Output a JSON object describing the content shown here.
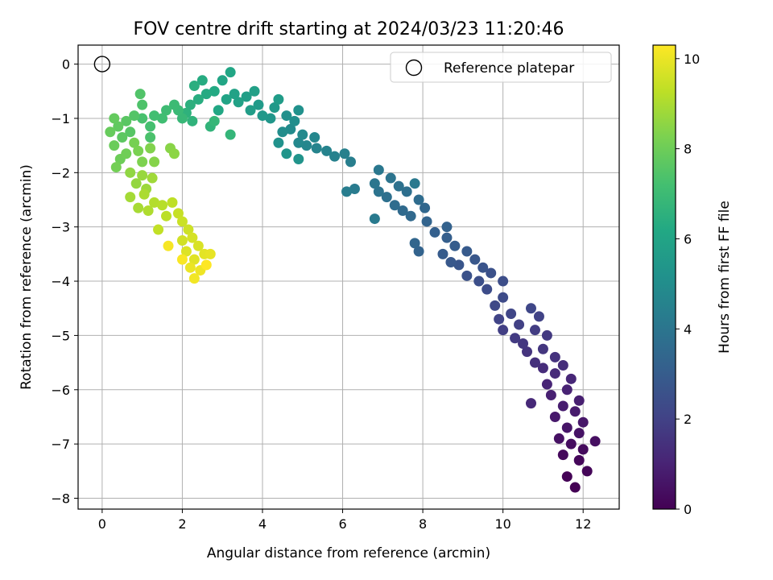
{
  "chart_data": {
    "type": "scatter",
    "title": "FOV centre drift starting at 2024/03/23 11:20:46",
    "xlabel": "Angular distance from reference (arcmin)",
    "ylabel": "Rotation from reference (arcmin)",
    "xlim": [
      -0.6,
      12.9
    ],
    "ylim": [
      -8.2,
      0.35
    ],
    "xticks": [
      0,
      2,
      4,
      6,
      8,
      10,
      12
    ],
    "yticks": [
      0,
      -1,
      -2,
      -3,
      -4,
      -5,
      -6,
      -7,
      -8
    ],
    "grid": true,
    "legend": {
      "placement": "top-right",
      "entries": [
        "Reference platepar"
      ]
    },
    "reference_point": {
      "x": 0,
      "y": 0,
      "label": "Reference platepar"
    },
    "colorbar": {
      "label": "Hours from first FF file",
      "range": [
        0,
        10.3
      ],
      "ticks": [
        0,
        2,
        4,
        6,
        8,
        10
      ],
      "colormap": "viridis"
    },
    "series": [
      {
        "points": [
          [
            11.8,
            -7.8
          ],
          [
            11.6,
            -7.6
          ],
          [
            12.1,
            -7.5
          ],
          [
            11.9,
            -7.3
          ],
          [
            11.5,
            -7.2
          ],
          [
            12.0,
            -7.1
          ],
          [
            11.7,
            -7.0
          ],
          [
            12.3,
            -6.95
          ],
          [
            11.4,
            -6.9
          ],
          [
            11.9,
            -6.8
          ],
          [
            11.6,
            -6.7
          ],
          [
            12.0,
            -6.6
          ],
          [
            11.3,
            -6.5
          ],
          [
            11.8,
            -6.4
          ],
          [
            11.5,
            -6.3
          ],
          [
            11.9,
            -6.2
          ],
          [
            11.2,
            -6.1
          ],
          [
            11.6,
            -6.0
          ],
          [
            11.1,
            -5.9
          ],
          [
            11.7,
            -5.8
          ],
          [
            10.7,
            -6.25
          ],
          [
            11.3,
            -5.7
          ],
          [
            11.0,
            -5.6
          ],
          [
            11.5,
            -5.55
          ],
          [
            10.8,
            -5.5
          ],
          [
            11.3,
            -5.4
          ],
          [
            10.6,
            -5.3
          ],
          [
            11.0,
            -5.25
          ],
          [
            10.5,
            -5.15
          ],
          [
            11.1,
            -5.0
          ],
          [
            10.3,
            -5.05
          ],
          [
            10.8,
            -4.9
          ],
          [
            10.0,
            -4.9
          ],
          [
            10.4,
            -4.8
          ],
          [
            10.9,
            -4.65
          ],
          [
            9.9,
            -4.7
          ],
          [
            10.2,
            -4.6
          ],
          [
            10.7,
            -4.5
          ],
          [
            9.8,
            -4.45
          ],
          [
            10.0,
            -4.3
          ],
          [
            9.6,
            -4.15
          ],
          [
            10.0,
            -4.0
          ],
          [
            9.4,
            -4.0
          ],
          [
            9.7,
            -3.85
          ],
          [
            9.1,
            -3.9
          ],
          [
            9.5,
            -3.75
          ],
          [
            8.9,
            -3.7
          ],
          [
            9.3,
            -3.6
          ],
          [
            8.7,
            -3.65
          ],
          [
            9.1,
            -3.45
          ],
          [
            8.5,
            -3.5
          ],
          [
            8.8,
            -3.35
          ],
          [
            8.6,
            -3.2
          ],
          [
            8.3,
            -3.1
          ],
          [
            8.6,
            -3.0
          ],
          [
            7.9,
            -3.45
          ],
          [
            8.1,
            -2.9
          ],
          [
            7.8,
            -3.3
          ],
          [
            8.05,
            -2.65
          ],
          [
            7.7,
            -2.8
          ],
          [
            7.5,
            -2.7
          ],
          [
            7.9,
            -2.5
          ],
          [
            7.3,
            -2.6
          ],
          [
            7.6,
            -2.35
          ],
          [
            7.1,
            -2.45
          ],
          [
            7.4,
            -2.25
          ],
          [
            6.9,
            -2.35
          ],
          [
            7.2,
            -2.1
          ],
          [
            6.8,
            -2.2
          ],
          [
            6.9,
            -1.95
          ],
          [
            7.8,
            -2.2
          ],
          [
            6.8,
            -2.85
          ],
          [
            6.3,
            -2.3
          ],
          [
            6.1,
            -2.35
          ],
          [
            6.2,
            -1.8
          ],
          [
            6.05,
            -1.65
          ],
          [
            5.8,
            -1.7
          ],
          [
            5.6,
            -1.6
          ],
          [
            5.35,
            -1.55
          ],
          [
            5.1,
            -1.5
          ],
          [
            5.3,
            -1.35
          ],
          [
            4.9,
            -1.45
          ],
          [
            5.0,
            -1.3
          ],
          [
            4.7,
            -1.2
          ],
          [
            4.5,
            -1.25
          ],
          [
            4.8,
            -1.05
          ],
          [
            4.6,
            -0.95
          ],
          [
            4.9,
            -0.85
          ],
          [
            4.4,
            -1.45
          ],
          [
            4.9,
            -1.75
          ],
          [
            4.6,
            -1.65
          ],
          [
            4.2,
            -1.0
          ],
          [
            4.0,
            -0.95
          ],
          [
            4.3,
            -0.8
          ],
          [
            3.9,
            -0.75
          ],
          [
            4.4,
            -0.65
          ],
          [
            3.7,
            -0.85
          ],
          [
            3.6,
            -0.6
          ],
          [
            3.8,
            -0.5
          ],
          [
            3.4,
            -0.7
          ],
          [
            3.3,
            -0.55
          ],
          [
            3.1,
            -0.65
          ],
          [
            3.0,
            -0.3
          ],
          [
            3.2,
            -0.15
          ],
          [
            2.9,
            -0.85
          ],
          [
            2.8,
            -0.5
          ],
          [
            2.6,
            -0.55
          ],
          [
            2.5,
            -0.3
          ],
          [
            2.4,
            -0.65
          ],
          [
            2.3,
            -0.4
          ],
          [
            2.2,
            -0.75
          ],
          [
            2.1,
            -0.9
          ],
          [
            2.25,
            -1.05
          ],
          [
            2.7,
            -1.15
          ],
          [
            3.2,
            -1.3
          ],
          [
            2.8,
            -1.05
          ],
          [
            2.0,
            -1.0
          ],
          [
            1.9,
            -0.85
          ],
          [
            1.8,
            -0.75
          ],
          [
            1.6,
            -0.85
          ],
          [
            1.5,
            -1.0
          ],
          [
            1.3,
            -0.95
          ],
          [
            1.2,
            -1.15
          ],
          [
            1.0,
            -1.0
          ],
          [
            1.2,
            -1.35
          ],
          [
            1.0,
            -0.75
          ],
          [
            0.95,
            -0.55
          ],
          [
            0.8,
            -0.95
          ],
          [
            0.7,
            -1.25
          ],
          [
            0.6,
            -1.05
          ],
          [
            0.5,
            -1.35
          ],
          [
            0.4,
            -1.15
          ],
          [
            0.3,
            -1.0
          ],
          [
            0.2,
            -1.25
          ],
          [
            0.3,
            -1.5
          ],
          [
            0.45,
            -1.75
          ],
          [
            0.6,
            -1.65
          ],
          [
            0.35,
            -1.9
          ],
          [
            0.8,
            -1.45
          ],
          [
            0.9,
            -1.6
          ],
          [
            1.0,
            -1.8
          ],
          [
            1.2,
            -1.55
          ],
          [
            1.3,
            -1.8
          ],
          [
            1.7,
            -1.55
          ],
          [
            1.8,
            -1.65
          ],
          [
            0.7,
            -2.0
          ],
          [
            0.85,
            -2.2
          ],
          [
            1.0,
            -2.05
          ],
          [
            1.1,
            -2.3
          ],
          [
            1.25,
            -2.1
          ],
          [
            0.7,
            -2.45
          ],
          [
            0.9,
            -2.65
          ],
          [
            1.05,
            -2.4
          ],
          [
            1.15,
            -2.7
          ],
          [
            1.3,
            -2.55
          ],
          [
            1.5,
            -2.6
          ],
          [
            1.6,
            -2.8
          ],
          [
            1.75,
            -2.55
          ],
          [
            1.4,
            -3.05
          ],
          [
            1.9,
            -2.75
          ],
          [
            2.0,
            -2.9
          ],
          [
            2.15,
            -3.05
          ],
          [
            2.0,
            -3.25
          ],
          [
            2.25,
            -3.2
          ],
          [
            2.4,
            -3.35
          ],
          [
            2.1,
            -3.45
          ],
          [
            2.3,
            -3.6
          ],
          [
            2.55,
            -3.5
          ],
          [
            2.7,
            -3.5
          ],
          [
            2.2,
            -3.75
          ],
          [
            2.45,
            -3.8
          ],
          [
            2.3,
            -3.95
          ],
          [
            1.65,
            -3.35
          ],
          [
            2.0,
            -3.6
          ],
          [
            2.6,
            -3.7
          ]
        ]
      }
    ]
  }
}
